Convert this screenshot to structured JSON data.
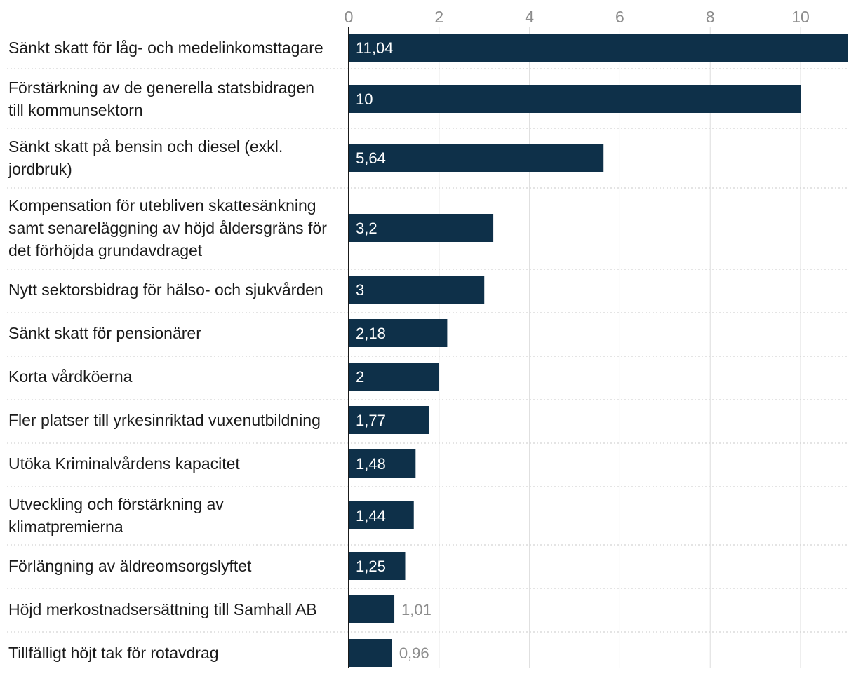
{
  "chart_data": {
    "type": "bar",
    "orientation": "horizontal",
    "xlim": [
      0,
      11.04
    ],
    "ticks": [
      "0",
      "2",
      "4",
      "6",
      "8",
      "10"
    ],
    "grid": true,
    "bar_color": "#0e3049",
    "gridline_color": "#dddddd",
    "separator_color": "#c8c8c8",
    "axis_color": "#1a1a1a",
    "rows": [
      {
        "lines": [
          "Sänkt skatt för låg- och medelinkomsttagare"
        ],
        "value": 11.04,
        "label": "11,04"
      },
      {
        "lines": [
          "Förstärkning av de generella statsbidragen",
          "till kommunsektorn"
        ],
        "value": 10,
        "label": "10"
      },
      {
        "lines": [
          "Sänkt skatt på bensin och diesel (exkl.",
          "jordbruk)"
        ],
        "value": 5.64,
        "label": "5,64"
      },
      {
        "lines": [
          "Kompensation för utebliven skattesänkning",
          "samt senareläggning av höjd åldersgräns för",
          "det förhöjda grundavdraget"
        ],
        "value": 3.2,
        "label": "3,2"
      },
      {
        "lines": [
          "Nytt sektorsbidrag för hälso- och sjukvården"
        ],
        "value": 3,
        "label": "3"
      },
      {
        "lines": [
          "Sänkt skatt för pensionärer"
        ],
        "value": 2.18,
        "label": "2,18"
      },
      {
        "lines": [
          "Korta vårdköerna"
        ],
        "value": 2,
        "label": "2"
      },
      {
        "lines": [
          "Fler platser till yrkesinriktad vuxenutbildning"
        ],
        "value": 1.77,
        "label": "1,77"
      },
      {
        "lines": [
          "Utöka Kriminalvårdens kapacitet"
        ],
        "value": 1.48,
        "label": "1,48"
      },
      {
        "lines": [
          "Utveckling och förstärkning av",
          "klimatpremierna"
        ],
        "value": 1.44,
        "label": "1,44"
      },
      {
        "lines": [
          "Förlängning av äldreomsorgslyftet"
        ],
        "value": 1.25,
        "label": "1,25"
      },
      {
        "lines": [
          "Höjd merkostnadsersättning till Samhall AB"
        ],
        "value": 1.01,
        "label": "1,01"
      },
      {
        "lines": [
          "Tillfälligt höjt tak för rotavdrag"
        ],
        "value": 0.96,
        "label": "0,96"
      }
    ]
  }
}
